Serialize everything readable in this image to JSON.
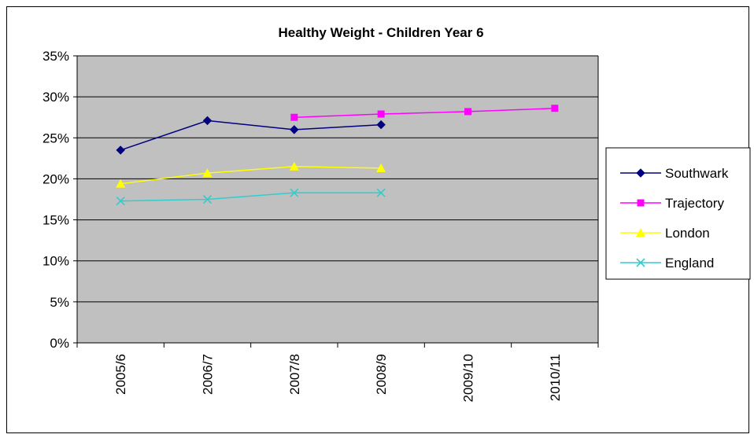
{
  "chart_data": {
    "type": "line",
    "title": "Healthy Weight - Children Year 6",
    "categories": [
      "2005/6",
      "2006/7",
      "2007/8",
      "2008/9",
      "2009/10",
      "2010/11"
    ],
    "y_ticks": [
      "0%",
      "5%",
      "10%",
      "15%",
      "20%",
      "25%",
      "30%",
      "35%"
    ],
    "ylim": [
      0,
      35
    ],
    "y_unit": "%",
    "grid": true,
    "plot_background": "#c0c0c0",
    "legend_position": "right",
    "series": [
      {
        "name": "Southwark",
        "color": "#000080",
        "marker": "diamond",
        "values": [
          23.5,
          27.1,
          26.0,
          26.6,
          null,
          null
        ]
      },
      {
        "name": "Trajectory",
        "color": "#ff00ff",
        "marker": "square",
        "values": [
          null,
          null,
          27.5,
          27.9,
          28.2,
          28.6
        ]
      },
      {
        "name": "London",
        "color": "#ffff00",
        "marker": "triangle",
        "values": [
          19.4,
          20.7,
          21.5,
          21.3,
          null,
          null
        ]
      },
      {
        "name": "England",
        "color": "#33cccc",
        "marker": "x",
        "values": [
          17.3,
          17.5,
          18.3,
          18.3,
          null,
          null
        ]
      }
    ]
  }
}
